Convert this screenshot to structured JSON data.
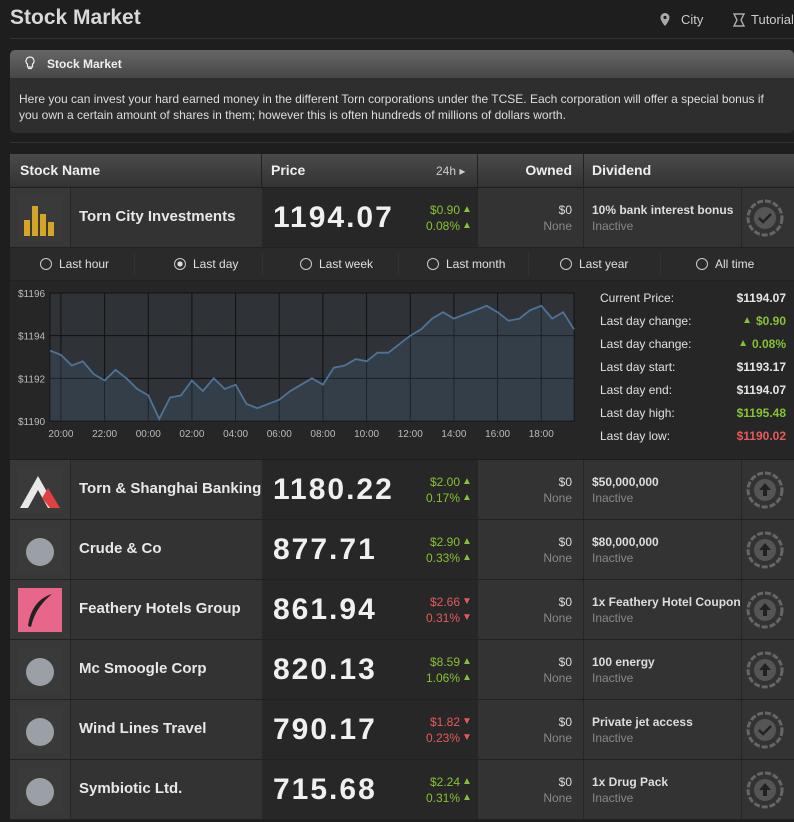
{
  "header": {
    "title": "Stock Market",
    "nav": [
      "City",
      "Tutorial"
    ]
  },
  "info": {
    "title": "Stock Market",
    "text": "Here you can invest your hard earned money in the different Torn corporations under the TCSE. Each corporation will offer a special bonus if you own a certain amount of shares in them; however this is often hundreds of millions of dollars worth."
  },
  "table": {
    "columns": [
      "Stock Name",
      "Price",
      "24h ▸",
      "Owned",
      "Dividend"
    ],
    "rows": [
      {
        "name": "Torn City Investments",
        "price": "1194.07",
        "change": "$0.90",
        "change_pct": "0.08%",
        "arrow": "▲",
        "owned": "$0",
        "shares": "None",
        "dividend": "10% bank interest bonus",
        "status": "Inactive"
      },
      {
        "name": "Torn & Shanghai Banking",
        "price": "1180.22",
        "change": "$2.00",
        "change_pct": "0.17%",
        "arrow": "▲",
        "owned": "$0",
        "shares": "None",
        "dividend": "$50,000,000",
        "status": "Inactive"
      },
      {
        "name": "Crude & Co",
        "price": "877.71",
        "change": "$2.90",
        "change_pct": "0.33%",
        "arrow": "▲",
        "owned": "$0",
        "shares": "None",
        "dividend": "$80,000,000",
        "status": "Inactive"
      },
      {
        "name": "Feathery Hotels Group",
        "price": "861.94",
        "change": "$2.66",
        "change_pct": "0.31%",
        "arrow": "▼",
        "owned": "$0",
        "shares": "None",
        "dividend": "1x Feathery Hotel Coupon",
        "status": "Inactive"
      },
      {
        "name": "Mc Smoogle Corp",
        "price": "820.13",
        "change": "$8.59",
        "change_pct": "1.06%",
        "arrow": "▲",
        "owned": "$0",
        "shares": "None",
        "dividend": "100 energy",
        "status": "Inactive"
      },
      {
        "name": "Wind Lines Travel",
        "price": "790.17",
        "change": "$1.82",
        "change_pct": "0.23%",
        "arrow": "▼",
        "owned": "$0",
        "shares": "None",
        "dividend": "Private jet access",
        "status": "Inactive"
      },
      {
        "name": "Symbiotic Ltd.",
        "price": "715.68",
        "change": "$2.24",
        "change_pct": "0.31%",
        "arrow": "▲",
        "owned": "$0",
        "shares": "None",
        "dividend": "1x Drug Pack",
        "status": "Inactive"
      }
    ]
  },
  "periods": [
    "Last hour",
    "Last day",
    "Last week",
    "Last month",
    "Last year",
    "All time"
  ],
  "selected_period": 1,
  "chart_data": {
    "type": "line",
    "color": "#4f7396",
    "grid": true,
    "categories": [
      null,
      "20:00",
      null,
      null,
      null,
      "22:00",
      null,
      null,
      null,
      "00:00",
      null,
      null,
      null,
      "02:00",
      null,
      null,
      null,
      "04:00",
      null,
      null,
      null,
      "06:00",
      null,
      null,
      null,
      "08:00",
      null,
      null,
      null,
      "10:00",
      null,
      null,
      null,
      "12:00",
      null,
      null,
      null,
      "14:00",
      null,
      null,
      null,
      "16:00",
      null,
      null,
      null,
      "18:00",
      null,
      null,
      null
    ],
    "values": [
      1193.3,
      1193.1,
      1192.6,
      1192.8,
      1192.2,
      1191.9,
      1192.4,
      1192.0,
      1191.5,
      1191.2,
      1190.1,
      1191.1,
      1191.2,
      1191.9,
      1191.4,
      1192.0,
      1191.5,
      1191.7,
      1190.8,
      1190.6,
      1190.8,
      1191.0,
      1191.4,
      1191.7,
      1192.0,
      1191.7,
      1192.5,
      1192.6,
      1192.9,
      1192.8,
      1193.2,
      1193.2,
      1193.6,
      1194.0,
      1194.3,
      1194.8,
      1195.1,
      1194.8,
      1195.0,
      1195.2,
      1195.4,
      1195.1,
      1194.7,
      1194.8,
      1195.2,
      1195.4,
      1194.8,
      1195.1,
      1194.3
    ],
    "ylim": [
      1190,
      1196
    ],
    "yticks": [
      {
        "value": 1190,
        "label": "$1190"
      },
      {
        "value": 1192,
        "label": "$1192"
      },
      {
        "value": 1194,
        "label": "$1194"
      },
      {
        "value": 1196,
        "label": "$1196"
      }
    ]
  },
  "stats": [
    {
      "label": "Current Price:",
      "value": "$1194.07",
      "color": "#e6e6e6"
    },
    {
      "label": "Last day change:",
      "arrow": "▲",
      "value": "$0.90",
      "color": "#86c233"
    },
    {
      "label": "Last day change:",
      "arrow": "▲",
      "value": "0.08%",
      "color": "#86c233"
    },
    {
      "label": "Last day start:",
      "value": "$1193.17",
      "color": "#e6e6e6"
    },
    {
      "label": "Last day end:",
      "value": "$1194.07",
      "color": "#e6e6e6"
    },
    {
      "label": "Last day high:",
      "value": "$1195.48",
      "color": "#86c233"
    },
    {
      "label": "Last day low:",
      "value": "$1190.02",
      "color": "#e55a5a"
    }
  ]
}
